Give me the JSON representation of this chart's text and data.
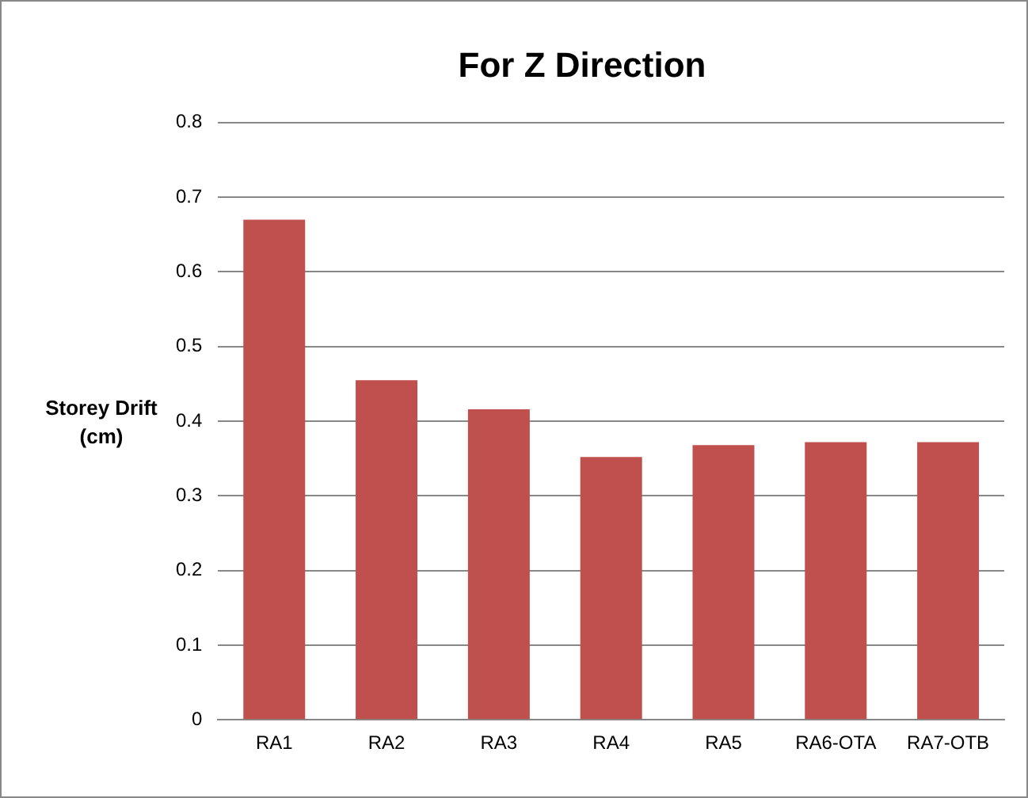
{
  "chart_data": {
    "type": "bar",
    "title": "For Z Direction",
    "ylabel": "Storey Drift (cm)",
    "categories": [
      "RA1",
      "RA2",
      "RA3",
      "RA4",
      "RA5",
      "RA6-OTA",
      "RA7-OTB"
    ],
    "values": [
      0.67,
      0.455,
      0.416,
      0.352,
      0.368,
      0.372,
      0.372
    ],
    "color": "#c0504d",
    "ylim": [
      0,
      0.8
    ],
    "yticks": [
      0,
      0.1,
      0.2,
      0.3,
      0.4,
      0.5,
      0.6,
      0.7,
      0.8
    ],
    "grid": "y"
  }
}
